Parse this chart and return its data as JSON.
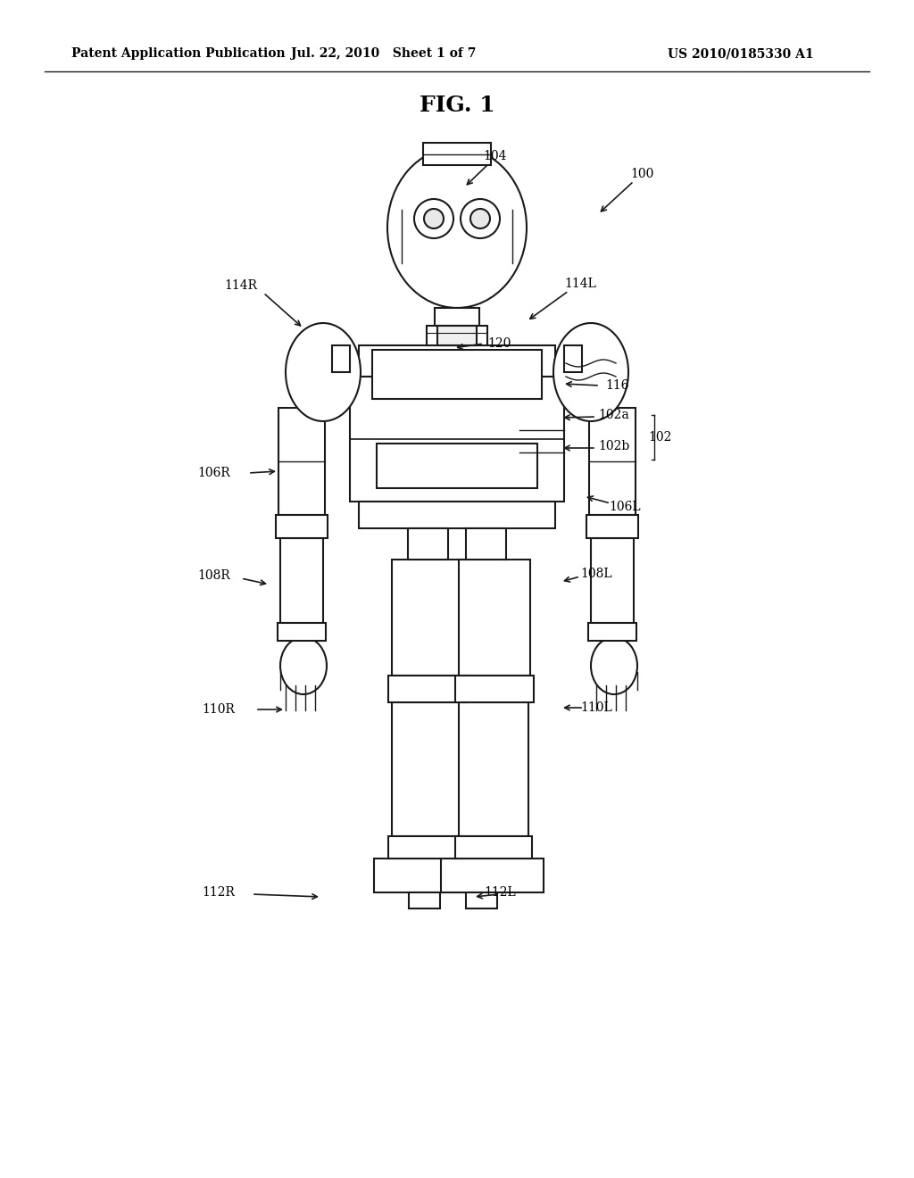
{
  "bg_color": "#ffffff",
  "line_color": "#1a1a1a",
  "lw": 1.5,
  "header_text": "Patent Application Publication",
  "header_date": "Jul. 22, 2010   Sheet 1 of 7",
  "header_patent": "US 2010/0185330 A1",
  "fig_title": "FIG. 1"
}
